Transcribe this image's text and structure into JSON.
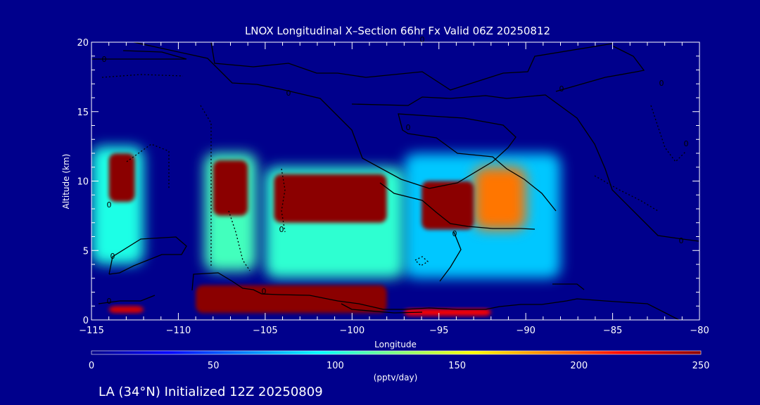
{
  "chart_data": {
    "type": "heatmap",
    "title": "LNOX Longitudinal X–Section 66hr  Fx Valid 06Z 20250812",
    "xlabel": "Longitude",
    "ylabel": "Altitude (km)",
    "xlim": [
      -115,
      -80
    ],
    "ylim": [
      0,
      20
    ],
    "x_ticks": [
      -115,
      -110,
      -105,
      -100,
      -95,
      -90,
      -85,
      -80
    ],
    "x_tick_labels": [
      "−115",
      "−110",
      "−105",
      "−100",
      "−95",
      "−90",
      "−85",
      "−80"
    ],
    "y_ticks": [
      0,
      5,
      10,
      15,
      20
    ],
    "y_tick_labels": [
      "0",
      "5",
      "10",
      "15",
      "20"
    ],
    "colorbar": {
      "min": 0,
      "max": 250,
      "ticks": [
        0,
        50,
        100,
        150,
        200,
        250
      ],
      "tick_labels": [
        "0",
        "50",
        "100",
        "150",
        "200",
        "250"
      ],
      "units": "(pptv/day)",
      "colormap": [
        "#00008c",
        "#0000ff",
        "#0080ff",
        "#00ffff",
        "#80ff80",
        "#ffff00",
        "#ff8000",
        "#ff0000",
        "#8b0000"
      ]
    },
    "lnox_cells": [
      {
        "lon": [
          -114,
          -112.5
        ],
        "alt": [
          8.5,
          12
        ],
        "value": 250
      },
      {
        "lon": [
          -115,
          -112
        ],
        "alt": [
          4,
          12.5
        ],
        "value": 100
      },
      {
        "lon": [
          -108,
          -106
        ],
        "alt": [
          7.5,
          11.5
        ],
        "value": 250
      },
      {
        "lon": [
          -108.5,
          -105.5
        ],
        "alt": [
          3.5,
          12
        ],
        "value": 110
      },
      {
        "lon": [
          -104.5,
          -98
        ],
        "alt": [
          7,
          10.5
        ],
        "value": 250
      },
      {
        "lon": [
          -105,
          -97
        ],
        "alt": [
          3,
          11
        ],
        "value": 105
      },
      {
        "lon": [
          -96,
          -93
        ],
        "alt": [
          6.5,
          10
        ],
        "value": 250
      },
      {
        "lon": [
          -93,
          -90
        ],
        "alt": [
          6.5,
          11
        ],
        "value": 190
      },
      {
        "lon": [
          -97,
          -88
        ],
        "alt": [
          3,
          12
        ],
        "value": 80
      },
      {
        "lon": [
          -114,
          -112
        ],
        "alt": [
          0.5,
          1
        ],
        "value": 230
      },
      {
        "lon": [
          -109,
          -98
        ],
        "alt": [
          0.5,
          2.5
        ],
        "value": 250
      },
      {
        "lon": [
          -97,
          -92
        ],
        "alt": [
          0.3,
          0.8
        ],
        "value": 220
      }
    ],
    "contour_labels": [
      "0",
      "0",
      "0",
      "0",
      "0",
      "0",
      "0",
      "0",
      "0",
      "0",
      "0",
      "0",
      "0",
      "0"
    ],
    "grid": false
  },
  "footer": {
    "init_text": "LA (34°N) Initialized 12Z 20250809"
  }
}
